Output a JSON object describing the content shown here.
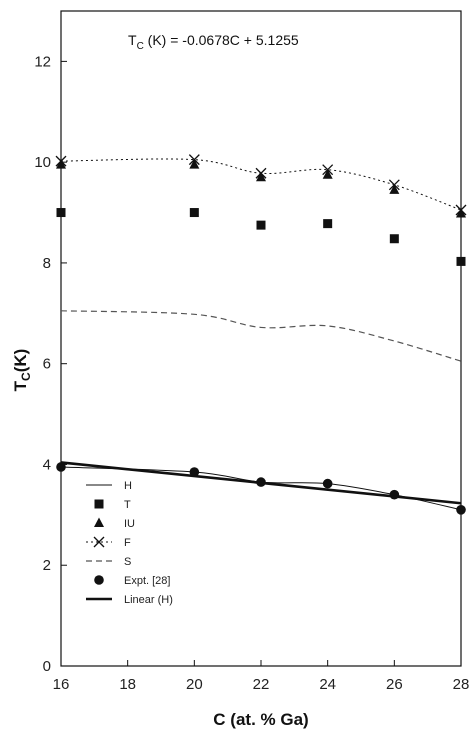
{
  "chart_data": {
    "type": "line",
    "xlabel": "C (at. % Ga)",
    "ylabel_main": "T",
    "ylabel_sub": "C",
    "ylabel_rest": "(K)",
    "xlim": [
      16,
      28
    ],
    "ylim": [
      0,
      13
    ],
    "xticks": [
      16,
      18,
      20,
      22,
      24,
      26,
      28
    ],
    "yticks": [
      0,
      2,
      4,
      6,
      8,
      10,
      12
    ],
    "grid": false,
    "legend_position": "bottom-left",
    "annotation": {
      "main": "T",
      "sub": "C",
      "rest": " (K) = -0.0678C + 5.1255"
    },
    "series": [
      {
        "name": "H",
        "style": "thin-line",
        "x": [
          16,
          20,
          22,
          24,
          26,
          28
        ],
        "y": [
          3.95,
          3.85,
          3.65,
          3.62,
          3.4,
          3.1
        ]
      },
      {
        "name": "T",
        "style": "square-markers",
        "x": [
          16,
          20,
          22,
          24,
          26,
          28
        ],
        "y": [
          9.0,
          9.0,
          8.75,
          8.78,
          8.48,
          8.03
        ]
      },
      {
        "name": "IU",
        "style": "triangle-markers",
        "x": [
          16,
          20,
          22,
          24,
          26,
          28
        ],
        "y": [
          9.95,
          9.95,
          9.7,
          9.75,
          9.45,
          8.98
        ]
      },
      {
        "name": "F",
        "style": "dotted-x",
        "x": [
          16,
          20,
          22,
          24,
          26,
          28
        ],
        "y": [
          10.02,
          10.05,
          9.78,
          9.85,
          9.55,
          9.05
        ]
      },
      {
        "name": "S",
        "style": "dashed",
        "x": [
          16,
          20,
          22,
          24,
          26,
          28
        ],
        "y": [
          7.05,
          6.98,
          6.72,
          6.75,
          6.45,
          6.05
        ]
      },
      {
        "name": "Expt. [28]",
        "style": "circle-markers",
        "x": [
          16,
          20,
          22,
          24,
          26,
          28
        ],
        "y": [
          3.95,
          3.85,
          3.65,
          3.62,
          3.4,
          3.1
        ]
      },
      {
        "name": "Linear (H)",
        "style": "thick-line",
        "x": [
          16,
          28
        ],
        "y": [
          4.04,
          3.23
        ]
      }
    ]
  },
  "colors": {
    "ink": "#111111",
    "dashed": "#555555"
  }
}
